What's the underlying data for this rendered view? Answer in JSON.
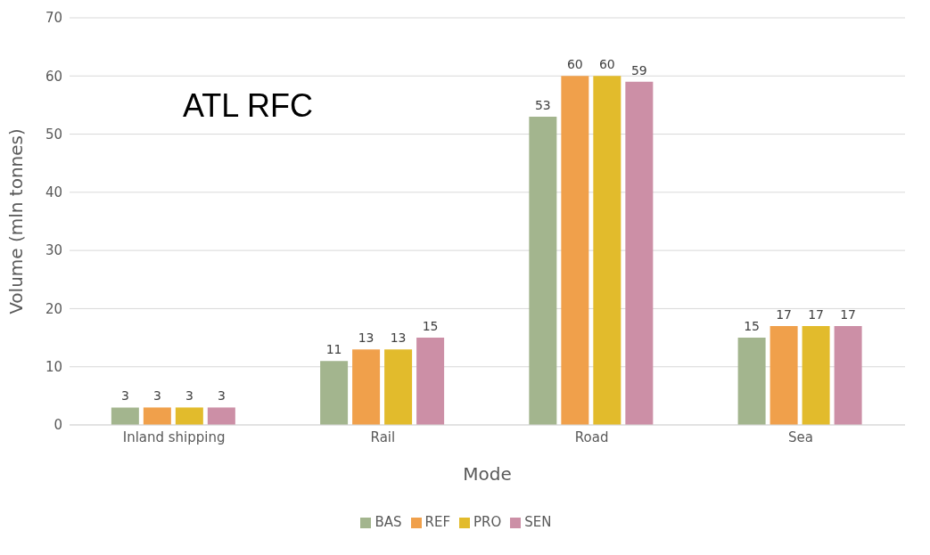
{
  "chart_data": {
    "type": "bar",
    "xlabel": "Mode",
    "ylabel": "Volume (mln tonnes)",
    "annotations": [
      "ATL RFC"
    ],
    "categories": [
      "Inland shipping",
      "Rail",
      "Road",
      "Sea"
    ],
    "series": [
      {
        "name": "BAS",
        "color": "#a3b58e",
        "values": [
          3,
          11,
          53,
          15
        ]
      },
      {
        "name": "REF",
        "color": "#f0a04b",
        "values": [
          3,
          13,
          60,
          17
        ]
      },
      {
        "name": "PRO",
        "color": "#e2bb2c",
        "values": [
          3,
          13,
          60,
          17
        ]
      },
      {
        "name": "SEN",
        "color": "#cc8fa6",
        "values": [
          3,
          15,
          59,
          17
        ]
      }
    ],
    "ylim": [
      0,
      70
    ],
    "yticks": [
      0,
      10,
      20,
      30,
      40,
      50,
      60,
      70
    ],
    "grid": "y",
    "legend": "bottom",
    "data_labels": true
  }
}
